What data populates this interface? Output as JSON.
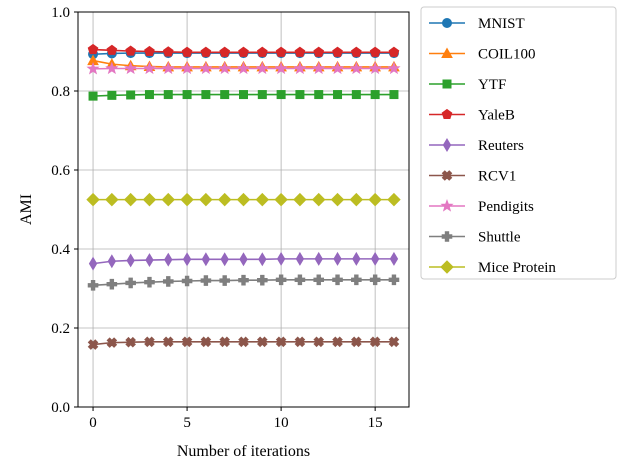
{
  "chart_data": {
    "type": "line",
    "title": "",
    "xlabel": "Number of iterations",
    "ylabel": "AMI",
    "xlim": [
      -0.8,
      16.8
    ],
    "ylim": [
      0.0,
      1.0
    ],
    "xticks": [
      0,
      5,
      10,
      15
    ],
    "yticks": [
      0.0,
      0.2,
      0.4,
      0.6,
      0.8,
      1.0
    ],
    "xtick_labels": [
      "0",
      "5",
      "10",
      "15"
    ],
    "ytick_labels": [
      "0.0",
      "0.2",
      "0.4",
      "0.6",
      "0.8",
      "1.0"
    ],
    "grid": true,
    "legend_position": "outside right",
    "x": [
      0,
      1,
      2,
      3,
      4,
      5,
      6,
      7,
      8,
      9,
      10,
      11,
      12,
      13,
      14,
      15,
      16
    ],
    "series": [
      {
        "name": "MNIST",
        "color": "#1f77b4",
        "marker": "circle",
        "values": [
          0.893,
          0.895,
          0.896,
          0.896,
          0.896,
          0.896,
          0.896,
          0.896,
          0.896,
          0.896,
          0.896,
          0.896,
          0.896,
          0.896,
          0.896,
          0.896,
          0.896
        ]
      },
      {
        "name": "COIL100",
        "color": "#ff7f0e",
        "marker": "triangle",
        "values": [
          0.877,
          0.868,
          0.864,
          0.862,
          0.861,
          0.861,
          0.861,
          0.861,
          0.861,
          0.861,
          0.861,
          0.861,
          0.861,
          0.861,
          0.861,
          0.861,
          0.861
        ]
      },
      {
        "name": "YTF",
        "color": "#2ca02c",
        "marker": "square",
        "values": [
          0.787,
          0.789,
          0.79,
          0.791,
          0.791,
          0.791,
          0.791,
          0.791,
          0.791,
          0.791,
          0.791,
          0.791,
          0.791,
          0.791,
          0.791,
          0.791,
          0.791
        ]
      },
      {
        "name": "YaleB",
        "color": "#d62728",
        "marker": "pentagon",
        "values": [
          0.905,
          0.903,
          0.901,
          0.9,
          0.899,
          0.898,
          0.898,
          0.898,
          0.898,
          0.898,
          0.898,
          0.898,
          0.898,
          0.898,
          0.898,
          0.898,
          0.898
        ]
      },
      {
        "name": "Reuters",
        "color": "#9467bd",
        "marker": "thin_diamond",
        "values": [
          0.363,
          0.369,
          0.371,
          0.372,
          0.373,
          0.374,
          0.374,
          0.374,
          0.374,
          0.374,
          0.375,
          0.375,
          0.375,
          0.375,
          0.375,
          0.375,
          0.375
        ]
      },
      {
        "name": "RCV1",
        "color": "#8c564b",
        "marker": "x_filled",
        "values": [
          0.158,
          0.163,
          0.164,
          0.165,
          0.165,
          0.165,
          0.165,
          0.165,
          0.165,
          0.165,
          0.165,
          0.165,
          0.165,
          0.165,
          0.165,
          0.165,
          0.165
        ]
      },
      {
        "name": "Pendigits",
        "color": "#e377c2",
        "marker": "star",
        "values": [
          0.856,
          0.857,
          0.857,
          0.857,
          0.857,
          0.857,
          0.857,
          0.857,
          0.857,
          0.857,
          0.857,
          0.857,
          0.857,
          0.857,
          0.857,
          0.857,
          0.857
        ]
      },
      {
        "name": "Shuttle",
        "color": "#7f7f7f",
        "marker": "plus_filled",
        "values": [
          0.308,
          0.311,
          0.314,
          0.316,
          0.318,
          0.319,
          0.32,
          0.32,
          0.321,
          0.321,
          0.322,
          0.322,
          0.322,
          0.322,
          0.322,
          0.322,
          0.322
        ]
      },
      {
        "name": "Mice Protein",
        "color": "#bcbd22",
        "marker": "diamond",
        "values": [
          0.525,
          0.525,
          0.525,
          0.525,
          0.525,
          0.525,
          0.525,
          0.525,
          0.525,
          0.525,
          0.525,
          0.525,
          0.525,
          0.525,
          0.525,
          0.525,
          0.525
        ]
      }
    ]
  }
}
